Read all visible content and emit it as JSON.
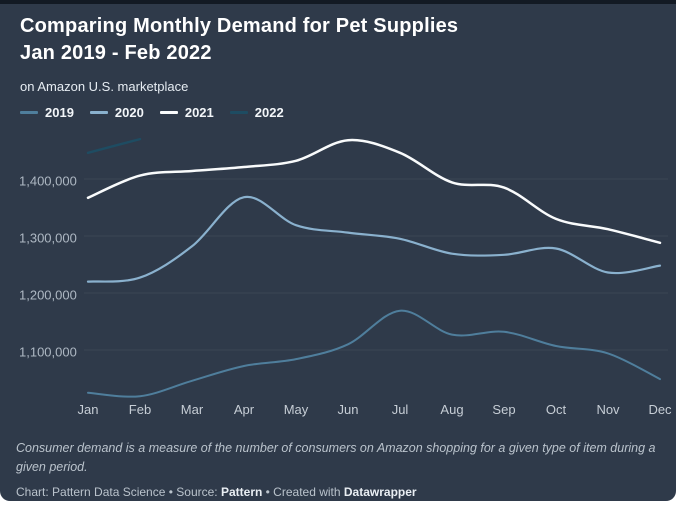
{
  "header": {
    "title_line1": "Comparing Monthly Demand for Pet Supplies",
    "title_line2": "Jan 2019 - Feb 2022",
    "subtitle": "on Amazon U.S. marketplace"
  },
  "chart_data": {
    "type": "line",
    "title": "Comparing Monthly Demand for Pet Supplies Jan 2019 - Feb 2022",
    "subtitle": "on Amazon U.S. marketplace",
    "categories": [
      "Jan",
      "Feb",
      "Mar",
      "Apr",
      "May",
      "Jun",
      "Jul",
      "Aug",
      "Sep",
      "Oct",
      "Nov",
      "Dec"
    ],
    "ylabels": [
      "1,400,000",
      "1,300,000",
      "1,200,000",
      "1,100,000"
    ],
    "yticks": [
      1400000,
      1300000,
      1200000,
      1100000
    ],
    "ylim": [
      1000000,
      1495000
    ],
    "grid": "faint-horizontal",
    "legend_position": "top-left",
    "xlabel": "",
    "ylabel": "",
    "series": [
      {
        "name": "2019",
        "color": "#4f7e9c",
        "width": 2,
        "values": [
          1025000,
          1019000,
          1046000,
          1072000,
          1084000,
          1110000,
          1169000,
          1127000,
          1132000,
          1107000,
          1094000,
          1049000
        ]
      },
      {
        "name": "2020",
        "color": "#8ab1ce",
        "width": 2.2,
        "values": [
          1220000,
          1227000,
          1282000,
          1368000,
          1319000,
          1306000,
          1295000,
          1269000,
          1267000,
          1278000,
          1236000,
          1248000
        ]
      },
      {
        "name": "2021",
        "color": "#f9fbfc",
        "width": 2.5,
        "values": [
          1367000,
          1406000,
          1414000,
          1421000,
          1432000,
          1468000,
          1446000,
          1394000,
          1385000,
          1330000,
          1312000,
          1288000
        ]
      },
      {
        "name": "2022",
        "color": "#1e4c62",
        "width": 2.4,
        "values": [
          1446000,
          1470000,
          null,
          null,
          null,
          null,
          null,
          null,
          null,
          null,
          null,
          null
        ]
      }
    ]
  },
  "footer": {
    "note": "Consumer demand is a measure of the number of consumers on Amazon shopping for a given type of item during a given period.",
    "credit_prefix": "Chart: Pattern Data Science • Source: ",
    "credit_source": "Pattern",
    "credit_middle": " • Created with ",
    "credit_tool": "Datawrapper"
  }
}
